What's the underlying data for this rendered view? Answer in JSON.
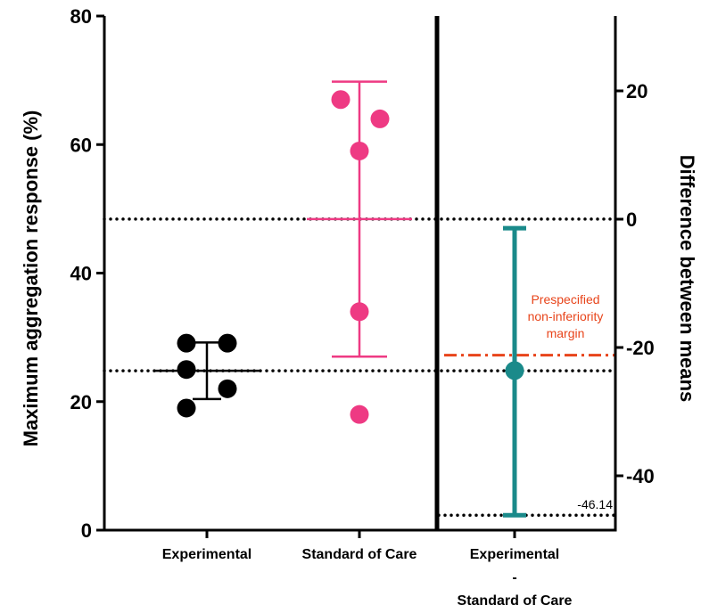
{
  "chart_data": {
    "type": "scatter",
    "left_axis": {
      "label": "Maximum aggregation response (%)",
      "ylim": [
        0,
        80
      ],
      "ticks": [
        "0",
        "20",
        "40",
        "60",
        "80"
      ]
    },
    "right_axis": {
      "label": "Difference between means",
      "ticks": [
        "-40",
        "-20",
        "0",
        "20"
      ]
    },
    "categories": [
      "Experimental",
      "Standard of Care"
    ],
    "diff_category_lines": [
      "Experimental",
      "-",
      "Standard of Care"
    ],
    "series": [
      {
        "category": "Experimental",
        "color": "#000000",
        "values": [
          29.1,
          29.1,
          25.0,
          22.0,
          19.0
        ],
        "mean": 24.8,
        "err_low": 20.4,
        "err_high": 29.2
      },
      {
        "category": "Standard of Care",
        "color": "#ee3a83",
        "values": [
          67.0,
          64.0,
          59.0,
          34.0,
          18.0
        ],
        "mean": 48.4,
        "err_low": 27.0,
        "err_high": 69.8
      }
    ],
    "difference": {
      "color": "#1a8a8a",
      "estimate": -23.6,
      "ci_low": -46.14,
      "ci_high": -1.4
    },
    "reference_lines": [
      {
        "style": "dotted",
        "color": "#000000",
        "left_value": 48.4
      },
      {
        "style": "dotted",
        "color": "#000000",
        "left_value": 24.8
      },
      {
        "style": "dotted",
        "color": "#000000",
        "diff_value": -46.14
      }
    ],
    "margin_line": {
      "style": "dash-dot",
      "color": "#e8441a",
      "diff_value": -21.2
    },
    "annotations": {
      "margin_label": [
        "Prespecified",
        "non-inferiority",
        "margin"
      ],
      "ci_low_label": "-46.14"
    }
  }
}
